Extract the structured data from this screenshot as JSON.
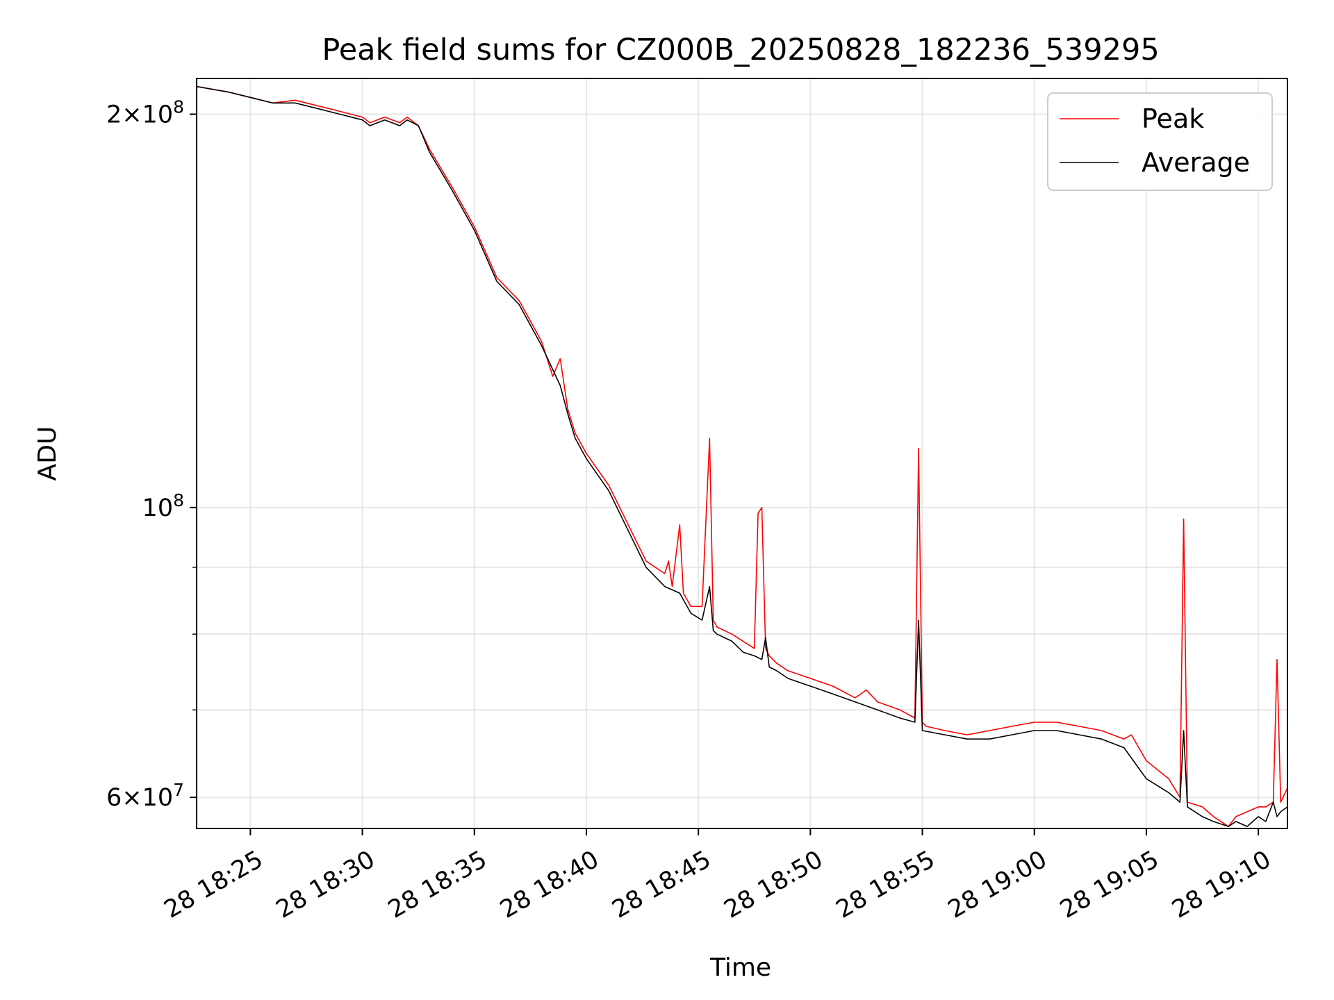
{
  "chart_data": {
    "type": "line",
    "title": "Peak field sums for CZ000B_20250828_182236_539295",
    "xlabel": "Time",
    "ylabel": "ADU",
    "x_date": "2025-08-28",
    "xlim": [
      "18:22:36",
      "19:11:18"
    ],
    "ylim": [
      56800000,
      213000000
    ],
    "yscale": "log",
    "grid": true,
    "legend_position": "top-right",
    "x_ticks": [
      "18:25",
      "18:30",
      "18:35",
      "18:40",
      "18:45",
      "18:50",
      "18:55",
      "19:00",
      "19:05",
      "19:10"
    ],
    "x_tick_labels": [
      "28 18:25",
      "28 18:30",
      "28 18:35",
      "28 18:40",
      "28 18:45",
      "28 18:50",
      "28 18:55",
      "28 19:00",
      "28 19:05",
      "28 19:10"
    ],
    "y_major_ticks": [
      {
        "value": 200000000,
        "mant": "2",
        "exp": "8",
        "style": "sci"
      },
      {
        "value": 100000000,
        "mant": "10",
        "exp": "8",
        "style": "pow"
      },
      {
        "value": 60000000,
        "mant": "6",
        "exp": "7",
        "style": "sci"
      }
    ],
    "y_minor_ticks": [
      70000000,
      80000000,
      90000000
    ],
    "series": [
      {
        "name": "Peak",
        "color": "#ff0000",
        "x": [
          "18:22:36",
          "18:24:00",
          "18:25:00",
          "18:26:00",
          "18:27:00",
          "18:27:30",
          "18:28:00",
          "18:29:00",
          "18:30:00",
          "18:30:20",
          "18:31:00",
          "18:31:40",
          "18:32:00",
          "18:32:30",
          "18:33:00",
          "18:34:00",
          "18:35:00",
          "18:36:00",
          "18:37:00",
          "18:38:00",
          "18:38:30",
          "18:38:50",
          "18:39:10",
          "18:39:30",
          "18:40:00",
          "18:41:00",
          "18:42:00",
          "18:42:40",
          "18:43:30",
          "18:43:40",
          "18:43:50",
          "18:44:10",
          "18:44:20",
          "18:44:40",
          "18:45:10",
          "18:45:30",
          "18:45:40",
          "18:45:50",
          "18:46:30",
          "18:47:00",
          "18:47:30",
          "18:47:40",
          "18:47:50",
          "18:48:00",
          "18:48:10",
          "18:48:30",
          "18:49:00",
          "18:50:00",
          "18:51:00",
          "18:52:00",
          "18:52:30",
          "18:53:00",
          "18:54:00",
          "18:54:40",
          "18:54:50",
          "18:55:00",
          "18:55:10",
          "18:56:00",
          "18:57:00",
          "18:58:00",
          "18:59:00",
          "19:00:00",
          "19:01:00",
          "19:02:00",
          "19:03:00",
          "19:04:00",
          "19:04:20",
          "19:05:00",
          "19:06:00",
          "19:06:30",
          "19:06:40",
          "19:06:50",
          "19:07:30",
          "19:08:00",
          "19:08:40",
          "19:09:00",
          "19:09:30",
          "19:10:00",
          "19:10:20",
          "19:10:40",
          "19:10:50",
          "19:11:00",
          "19:11:18"
        ],
        "values": [
          210000000,
          208000000,
          206000000,
          204000000,
          205000000,
          204000000,
          203000000,
          201000000,
          199000000,
          197000000,
          199000000,
          197000000,
          199000000,
          196000000,
          188000000,
          176000000,
          164000000,
          150000000,
          144000000,
          134000000,
          126000000,
          130000000,
          119000000,
          114000000,
          110000000,
          104000000,
          96000000,
          91000000,
          89000000,
          91000000,
          87000000,
          97000000,
          86000000,
          84000000,
          84000000,
          113000000,
          82000000,
          81000000,
          80000000,
          79000000,
          78000000,
          99000000,
          100000000,
          78000000,
          77000000,
          76000000,
          75000000,
          74000000,
          73000000,
          71500000,
          72500000,
          71000000,
          70000000,
          69000000,
          111000000,
          68500000,
          68000000,
          67500000,
          67000000,
          67500000,
          68000000,
          68500000,
          68500000,
          68000000,
          67500000,
          66500000,
          67000000,
          64000000,
          62000000,
          60000000,
          98000000,
          59500000,
          59000000,
          58000000,
          57000000,
          58000000,
          58500000,
          59000000,
          59000000,
          59500000,
          76500000,
          59500000,
          61000000
        ]
      },
      {
        "name": "Average",
        "color": "#000000",
        "x": [
          "18:22:36",
          "18:24:00",
          "18:25:00",
          "18:26:00",
          "18:27:00",
          "18:28:00",
          "18:29:00",
          "18:30:00",
          "18:30:20",
          "18:31:00",
          "18:31:40",
          "18:32:00",
          "18:32:30",
          "18:33:00",
          "18:34:00",
          "18:35:00",
          "18:36:00",
          "18:37:00",
          "18:38:00",
          "18:38:50",
          "18:39:10",
          "18:39:30",
          "18:40:00",
          "18:41:00",
          "18:42:00",
          "18:42:40",
          "18:43:30",
          "18:44:10",
          "18:44:20",
          "18:44:40",
          "18:45:10",
          "18:45:30",
          "18:45:40",
          "18:45:50",
          "18:46:30",
          "18:47:00",
          "18:47:30",
          "18:47:50",
          "18:48:00",
          "18:48:10",
          "18:48:30",
          "18:49:00",
          "18:50:00",
          "18:51:00",
          "18:52:00",
          "18:53:00",
          "18:54:00",
          "18:54:40",
          "18:54:50",
          "18:55:00",
          "18:56:00",
          "18:57:00",
          "18:58:00",
          "18:59:00",
          "19:00:00",
          "19:01:00",
          "19:02:00",
          "19:03:00",
          "19:04:00",
          "19:05:00",
          "19:06:00",
          "19:06:30",
          "19:06:40",
          "19:06:50",
          "19:07:30",
          "19:08:00",
          "19:08:40",
          "19:09:00",
          "19:09:30",
          "19:10:00",
          "19:10:20",
          "19:10:40",
          "19:10:50",
          "19:11:00",
          "19:11:18"
        ],
        "values": [
          210000000,
          208000000,
          206000000,
          204000000,
          204000000,
          202000000,
          200000000,
          198000000,
          196000000,
          198000000,
          196000000,
          198000000,
          196000000,
          187000000,
          175000000,
          163000000,
          149000000,
          143000000,
          133000000,
          124000000,
          118000000,
          113000000,
          109000000,
          103000000,
          95000000,
          90000000,
          87000000,
          86000000,
          85000000,
          83000000,
          82000000,
          87000000,
          80500000,
          80000000,
          79000000,
          77500000,
          77000000,
          76500000,
          79500000,
          75500000,
          75000000,
          74000000,
          73000000,
          72000000,
          71000000,
          70000000,
          69000000,
          68500000,
          82000000,
          67500000,
          67000000,
          66500000,
          66500000,
          67000000,
          67500000,
          67500000,
          67000000,
          66500000,
          65500000,
          62000000,
          60500000,
          59500000,
          67500000,
          59000000,
          58000000,
          57500000,
          57000000,
          57500000,
          57000000,
          58000000,
          57500000,
          59500000,
          58000000,
          58500000,
          59000000
        ]
      }
    ]
  }
}
